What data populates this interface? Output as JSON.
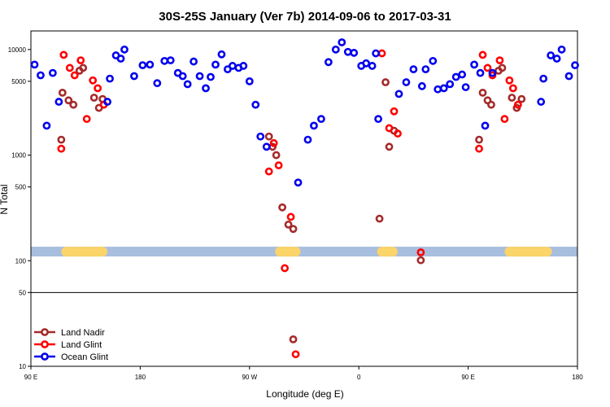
{
  "chart_data": {
    "type": "scatter",
    "title": "30S-25S January (Ver 7b)   2014-09-06 to 2017-03-31",
    "xlabel": "Longitude (deg E)",
    "ylabel": "N Total",
    "yscale": "log",
    "xlim": [
      90,
      540
    ],
    "ylim": [
      10,
      15000
    ],
    "x_ticks": [
      {
        "value": 90,
        "label": "90 E"
      },
      {
        "value": 180,
        "label": "180"
      },
      {
        "value": 270,
        "label": "90 W"
      },
      {
        "value": 360,
        "label": "0"
      },
      {
        "value": 450,
        "label": "90 E"
      },
      {
        "value": 540,
        "label": "180"
      }
    ],
    "y_ticks": [
      {
        "value": 10,
        "label": "10"
      },
      {
        "value": 50,
        "label": "50"
      },
      {
        "value": 100,
        "label": "100"
      },
      {
        "value": 500,
        "label": "500"
      },
      {
        "value": 1000,
        "label": "1000"
      },
      {
        "value": 5000,
        "label": "5000"
      },
      {
        "value": 10000,
        "label": "10000"
      }
    ],
    "reference_line_y": 50,
    "band": {
      "y_center": 122,
      "color": "#a8bede"
    },
    "land_segments": [
      {
        "x0": 115,
        "x1": 153
      },
      {
        "x0": 291,
        "x1": 312
      },
      {
        "x0": 375,
        "x1": 392
      },
      {
        "x0": 480,
        "x1": 519
      }
    ],
    "land_color": "#fbd46a",
    "legend": {
      "position": "bottom-left"
    },
    "series": [
      {
        "name": "Land Nadir",
        "color": "#a52a2a",
        "points": [
          [
            115,
            1400
          ],
          [
            116,
            3900
          ],
          [
            121,
            3300
          ],
          [
            125,
            3000
          ],
          [
            130,
            6300
          ],
          [
            133,
            6700
          ],
          [
            142,
            3500
          ],
          [
            146,
            2800
          ],
          [
            149,
            3400
          ],
          [
            286,
            1500
          ],
          [
            289,
            1200
          ],
          [
            292,
            1000
          ],
          [
            297,
            320
          ],
          [
            302,
            220
          ],
          [
            306,
            200
          ],
          [
            306,
            18
          ],
          [
            377,
            250
          ],
          [
            382,
            4900
          ],
          [
            385,
            1200
          ],
          [
            389,
            1700
          ],
          [
            459,
            1400
          ],
          [
            462,
            3900
          ],
          [
            466,
            3300
          ],
          [
            469,
            3000
          ],
          [
            475,
            6300
          ],
          [
            478,
            6700
          ],
          [
            486,
            3500
          ],
          [
            490,
            2800
          ],
          [
            494,
            3400
          ],
          [
            411,
            101
          ]
        ]
      },
      {
        "name": "Land Glint",
        "color": "#ff0000",
        "points": [
          [
            115,
            1150
          ],
          [
            117,
            8900
          ],
          [
            122,
            6700
          ],
          [
            126,
            5700
          ],
          [
            131,
            7900
          ],
          [
            136,
            2200
          ],
          [
            141,
            5100
          ],
          [
            145,
            4300
          ],
          [
            150,
            3000
          ],
          [
            286,
            700
          ],
          [
            290,
            1300
          ],
          [
            294,
            800
          ],
          [
            299,
            85
          ],
          [
            304,
            260
          ],
          [
            308,
            13
          ],
          [
            379,
            9200
          ],
          [
            385,
            1800
          ],
          [
            389,
            2600
          ],
          [
            392,
            1600
          ],
          [
            459,
            1150
          ],
          [
            462,
            8900
          ],
          [
            466,
            6700
          ],
          [
            470,
            5700
          ],
          [
            476,
            7900
          ],
          [
            480,
            2200
          ],
          [
            484,
            5100
          ],
          [
            487,
            4300
          ],
          [
            491,
            3000
          ],
          [
            411,
            120
          ]
        ]
      },
      {
        "name": "Ocean Glint",
        "color": "#0000ee",
        "points": [
          [
            93,
            7200
          ],
          [
            98,
            5700
          ],
          [
            103,
            1900
          ],
          [
            108,
            6000
          ],
          [
            113,
            3200
          ],
          [
            153,
            3200
          ],
          [
            155,
            5300
          ],
          [
            160,
            8800
          ],
          [
            164,
            8200
          ],
          [
            167,
            10000
          ],
          [
            175,
            5600
          ],
          [
            182,
            7100
          ],
          [
            188,
            7200
          ],
          [
            194,
            4800
          ],
          [
            200,
            7800
          ],
          [
            205,
            7900
          ],
          [
            211,
            6000
          ],
          [
            215,
            5600
          ],
          [
            219,
            4700
          ],
          [
            224,
            7700
          ],
          [
            229,
            5600
          ],
          [
            234,
            4300
          ],
          [
            238,
            5500
          ],
          [
            242,
            7200
          ],
          [
            247,
            9000
          ],
          [
            252,
            6500
          ],
          [
            256,
            7000
          ],
          [
            261,
            6700
          ],
          [
            265,
            7000
          ],
          [
            270,
            5000
          ],
          [
            275,
            3000
          ],
          [
            279,
            1500
          ],
          [
            284,
            1200
          ],
          [
            310,
            550
          ],
          [
            318,
            1400
          ],
          [
            323,
            1900
          ],
          [
            329,
            2200
          ],
          [
            335,
            7600
          ],
          [
            341,
            10000
          ],
          [
            346,
            11700
          ],
          [
            351,
            9500
          ],
          [
            356,
            9300
          ],
          [
            362,
            7000
          ],
          [
            366,
            7400
          ],
          [
            371,
            7000
          ],
          [
            374,
            9200
          ],
          [
            376,
            2200
          ],
          [
            393,
            3800
          ],
          [
            399,
            4900
          ],
          [
            405,
            6500
          ],
          [
            412,
            4500
          ],
          [
            415,
            6500
          ],
          [
            421,
            7800
          ],
          [
            425,
            4200
          ],
          [
            430,
            4300
          ],
          [
            435,
            4700
          ],
          [
            440,
            5500
          ],
          [
            445,
            5800
          ],
          [
            448,
            4400
          ],
          [
            455,
            7200
          ],
          [
            460,
            6000
          ],
          [
            464,
            1900
          ],
          [
            470,
            6000
          ],
          [
            510,
            3200
          ],
          [
            512,
            5300
          ],
          [
            518,
            8800
          ],
          [
            523,
            8200
          ],
          [
            527,
            10000
          ],
          [
            533,
            5600
          ],
          [
            538,
            7100
          ]
        ]
      }
    ]
  }
}
